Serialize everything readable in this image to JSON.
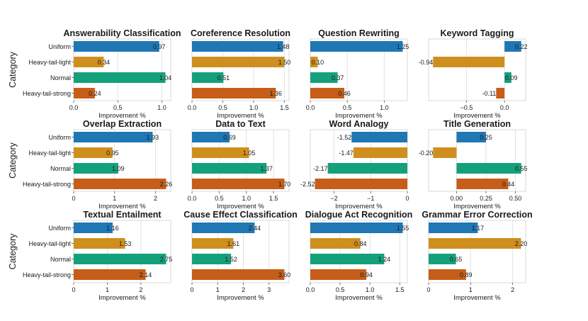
{
  "chart_data": {
    "type": "bar",
    "orientation": "horizontal",
    "categories": [
      "Uniform",
      "Heavy-tail-light",
      "Normal",
      "Heavy-tail-strong"
    ],
    "colors": [
      "#1f77b4",
      "#cf8f1e",
      "#15a07c",
      "#c65d18"
    ],
    "row_axis_label": "Category",
    "xlabel": "Improvement %",
    "panels": [
      {
        "title": "Answerability Classification",
        "values": [
          0.97,
          0.34,
          1.04,
          0.24
        ],
        "labels": [
          "0.97",
          "0.34",
          "1.04",
          "0.24"
        ],
        "xlim": [
          0,
          1.1
        ],
        "ticks": [
          0,
          0.5,
          1
        ],
        "tick_labels": [
          "0.0",
          "0.5",
          "1.0"
        ]
      },
      {
        "title": "Coreference Resolution",
        "values": [
          1.48,
          1.5,
          0.51,
          1.36
        ],
        "labels": [
          "1.48",
          "1.50",
          "0.51",
          "1.36"
        ],
        "xlim": [
          0,
          1.575
        ],
        "ticks": [
          0,
          0.5,
          1,
          1.5
        ],
        "tick_labels": [
          "0.0",
          "0.5",
          "1.0",
          "1.5"
        ]
      },
      {
        "title": "Question Rewriting",
        "values": [
          1.25,
          0.1,
          0.37,
          0.46
        ],
        "labels": [
          "1.25",
          "0.10",
          "0.37",
          "0.46"
        ],
        "xlim": [
          0,
          1.3125
        ],
        "ticks": [
          0,
          0.5,
          1
        ],
        "tick_labels": [
          "0.0",
          "0.5",
          "1.0"
        ]
      },
      {
        "title": "Keyword Tagging",
        "values": [
          0.22,
          -0.94,
          0.09,
          -0.11
        ],
        "labels": [
          "0.22",
          "-0.94",
          "0.09",
          "-0.11"
        ],
        "xlim": [
          -0.998,
          0.278
        ],
        "ticks": [
          -0.5,
          0
        ],
        "tick_labels": [
          "−0.5",
          "0.0"
        ]
      },
      {
        "title": "Overlap Extraction",
        "values": [
          1.93,
          0.95,
          1.09,
          2.26
        ],
        "labels": [
          "1.93",
          "0.95",
          "1.09",
          "2.26"
        ],
        "xlim": [
          0,
          2.373
        ],
        "ticks": [
          0,
          1,
          2
        ],
        "tick_labels": [
          "0",
          "1",
          "2"
        ]
      },
      {
        "title": "Data to Text",
        "values": [
          0.69,
          1.05,
          1.37,
          1.7
        ],
        "labels": [
          "0.69",
          "1.05",
          "1.37",
          "1.70"
        ],
        "xlim": [
          0,
          1.785
        ],
        "ticks": [
          0,
          0.5,
          1,
          1.5
        ],
        "tick_labels": [
          "0.0",
          "0.5",
          "1.0",
          "1.5"
        ]
      },
      {
        "title": "Word Analogy",
        "values": [
          -1.52,
          -1.47,
          -2.17,
          -2.52
        ],
        "labels": [
          "-1.52",
          "-1.47",
          "-2.17",
          "-2.52"
        ],
        "xlim": [
          -2.646,
          0
        ],
        "ticks": [
          -2,
          -1,
          0
        ],
        "tick_labels": [
          "−2",
          "−1",
          "0"
        ]
      },
      {
        "title": "Title Generation",
        "values": [
          0.25,
          -0.2,
          0.55,
          0.44
        ],
        "labels": [
          "0.25",
          "-0.20",
          "0.55",
          "0.44"
        ],
        "xlim": [
          -0.2375,
          0.5875
        ],
        "ticks": [
          0,
          0.25,
          0.5
        ],
        "tick_labels": [
          "0.00",
          "0.25",
          "0.50"
        ]
      },
      {
        "title": "Textual Entailment",
        "values": [
          1.16,
          1.53,
          2.75,
          2.14
        ],
        "labels": [
          "1.16",
          "1.53",
          "2.75",
          "2.14"
        ],
        "xlim": [
          0,
          2.8875
        ],
        "ticks": [
          0,
          1,
          2
        ],
        "tick_labels": [
          "0",
          "1",
          "2"
        ]
      },
      {
        "title": "Cause Effect Classification",
        "values": [
          2.44,
          1.61,
          1.52,
          3.6
        ],
        "labels": [
          "2.44",
          "1.61",
          "1.52",
          "3.60"
        ],
        "xlim": [
          0,
          3.78
        ],
        "ticks": [
          0,
          1,
          2,
          3
        ],
        "tick_labels": [
          "0",
          "1",
          "2",
          "3"
        ]
      },
      {
        "title": "Dialogue Act Recognition",
        "values": [
          1.55,
          0.84,
          1.24,
          0.94
        ],
        "labels": [
          "1.55",
          "0.84",
          "1.24",
          "0.94"
        ],
        "xlim": [
          0,
          1.6275
        ],
        "ticks": [
          0,
          0.5,
          1,
          1.5
        ],
        "tick_labels": [
          "0.0",
          "0.5",
          "1.0",
          "1.5"
        ]
      },
      {
        "title": "Grammar Error Correction",
        "values": [
          1.17,
          2.2,
          0.65,
          0.89
        ],
        "labels": [
          "1.17",
          "2.20",
          "0.65",
          "0.89"
        ],
        "xlim": [
          0,
          2.31
        ],
        "ticks": [
          0,
          1,
          2
        ],
        "tick_labels": [
          "0",
          "1",
          "2"
        ]
      }
    ]
  }
}
